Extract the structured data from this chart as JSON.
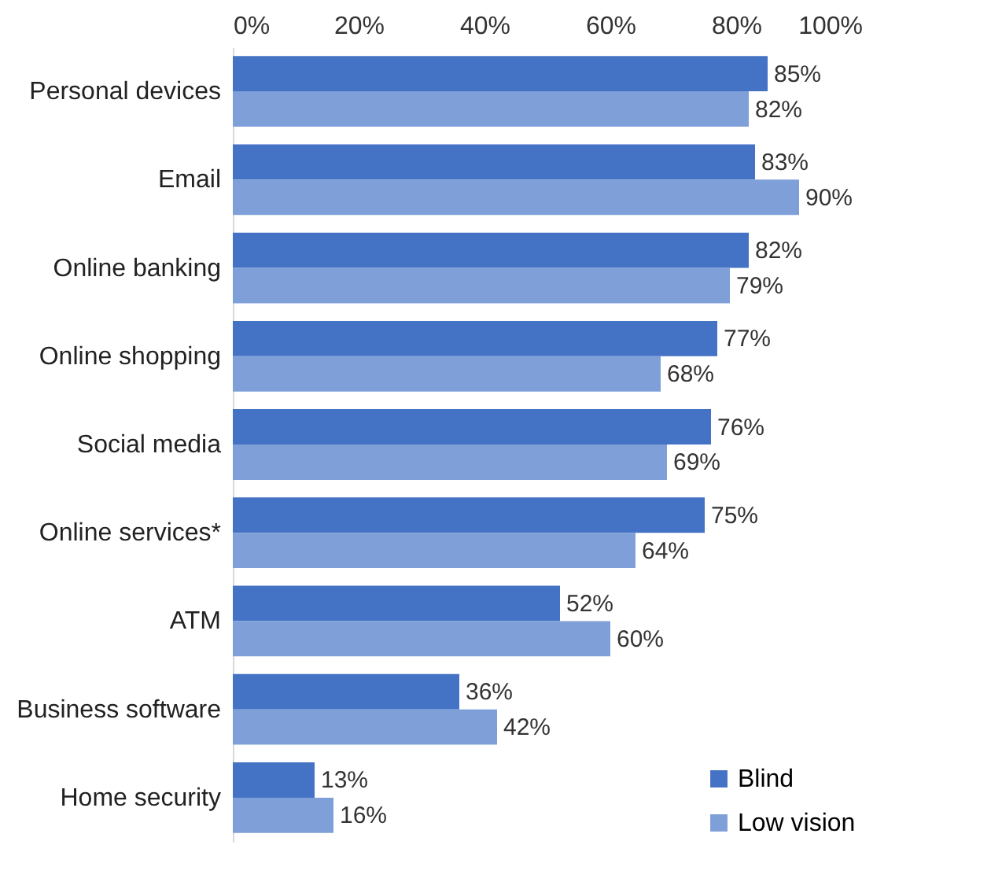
{
  "chart_data": {
    "type": "bar",
    "orientation": "horizontal",
    "categories": [
      "Personal devices",
      "Email",
      "Online banking",
      "Online shopping",
      "Social media",
      "Online services*",
      "ATM",
      "Business software",
      "Home security"
    ],
    "series": [
      {
        "name": "Blind",
        "color": "#4472c4",
        "values": [
          85,
          83,
          82,
          77,
          76,
          75,
          52,
          36,
          13
        ],
        "value_labels": [
          "85%",
          "83%",
          "82%",
          "77%",
          "76%",
          "75%",
          "52%",
          "36%",
          "13%"
        ]
      },
      {
        "name": "Low vision",
        "color": "#7f9fd8",
        "values": [
          82,
          90,
          79,
          68,
          69,
          64,
          60,
          42,
          16
        ],
        "value_labels": [
          "82%",
          "90%",
          "79%",
          "68%",
          "69%",
          "64%",
          "60%",
          "42%",
          "16%"
        ]
      }
    ],
    "xlim": [
      0,
      100
    ],
    "xticks": [
      {
        "value": 0,
        "label": "0%"
      },
      {
        "value": 20,
        "label": "20%"
      },
      {
        "value": 40,
        "label": "40%"
      },
      {
        "value": 60,
        "label": "60%"
      },
      {
        "value": 80,
        "label": "80%"
      },
      {
        "value": 100,
        "label": "100%"
      }
    ],
    "grid": false,
    "legend": "bottom right"
  }
}
